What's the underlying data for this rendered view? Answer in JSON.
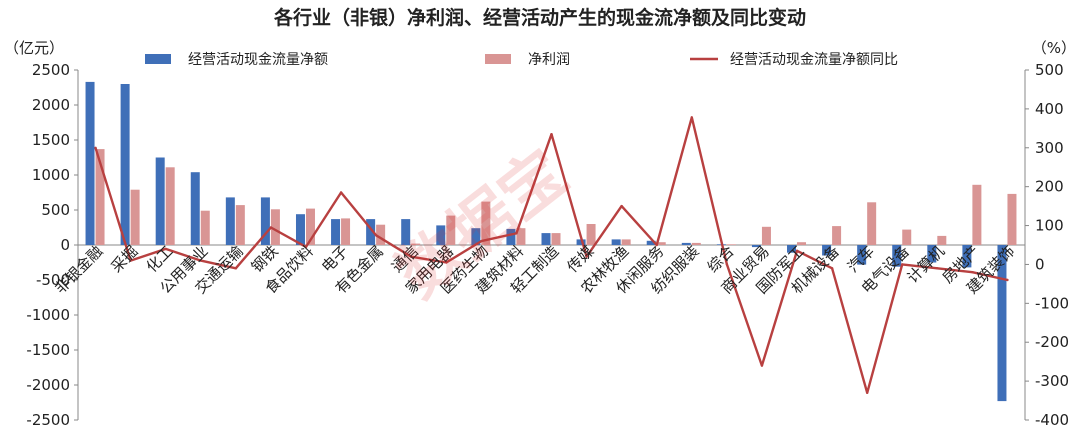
{
  "chart_data": {
    "type": "bar",
    "title": "各行业（非银）净利润、经营活动产生的现金流净额及同比变动",
    "y_left_unit": "（亿元）",
    "y_right_unit": "（%）",
    "ylim_left": [
      -2500,
      2500
    ],
    "ylim_right": [
      -400,
      500
    ],
    "y_left_ticks": [
      2500,
      2000,
      1500,
      1000,
      500,
      0,
      -500,
      -1000,
      -1500,
      -2000,
      -2500
    ],
    "y_right_ticks": [
      500,
      400,
      300,
      200,
      100,
      0,
      -100,
      -200,
      -300,
      -400
    ],
    "legend_position": "top",
    "grid": false,
    "categories": [
      "非银金融",
      "采掘",
      "化工",
      "公用事业",
      "交通运输",
      "钢铁",
      "食品饮料",
      "电子",
      "有色金属",
      "通信",
      "家用电器",
      "医药生物",
      "建筑材料",
      "轻工制造",
      "传媒",
      "农林牧渔",
      "休闲服务",
      "纺织服装",
      "综合",
      "商业贸易",
      "国防军工",
      "机械设备",
      "汽车",
      "电气设备",
      "计算机",
      "房地产",
      "建筑装饰"
    ],
    "series": [
      {
        "name": "经营活动现金流量净额",
        "type": "bar",
        "axis": "left",
        "color": "#3f6fb8",
        "values": [
          2330,
          2300,
          1250,
          1040,
          680,
          680,
          440,
          370,
          370,
          370,
          280,
          240,
          230,
          170,
          80,
          80,
          60,
          30,
          10,
          -30,
          -110,
          -150,
          -280,
          -310,
          -250,
          -320,
          -2230
        ]
      },
      {
        "name": "净利润",
        "type": "bar",
        "axis": "left",
        "color": "#d99594",
        "values": [
          1370,
          790,
          1110,
          490,
          570,
          510,
          520,
          380,
          290,
          20,
          420,
          620,
          240,
          170,
          300,
          80,
          40,
          30,
          10,
          260,
          40,
          270,
          610,
          220,
          130,
          860,
          730
        ]
      },
      {
        "name": "经营活动现金流量净额同比",
        "type": "line",
        "axis": "right",
        "color": "#b84040",
        "values": [
          300,
          10,
          40,
          10,
          -10,
          95,
          45,
          185,
          75,
          20,
          5,
          60,
          80,
          335,
          20,
          150,
          50,
          378,
          0,
          -260,
          35,
          -10,
          -330,
          0,
          -10,
          -20,
          -40
        ]
      }
    ],
    "watermark": "数据宝"
  }
}
